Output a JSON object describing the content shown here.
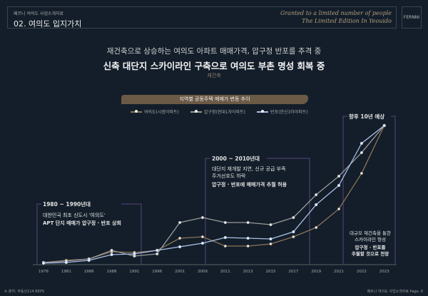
{
  "header": {
    "subtitle": "페르니 여의도 사업소개자료",
    "title": "02. 여의도 입지가치",
    "script_line1": "Granted to a limited number of people",
    "script_line2": "The Limited Edition In Yeouido",
    "logo": "FERNNI"
  },
  "lead": {
    "line1": "재건축으로 상승하는 여의도 아파트 매매가격, 압구정 반포를 추격 중",
    "line2": "신축 대단지 스카이라인 구축으로 여의도 부촌 명성 회복 중",
    "tag": "재건축"
  },
  "chart_data": {
    "type": "line",
    "title": "지역별 공동주택 매매가 변동 추이",
    "xlabel": "",
    "ylabel": "",
    "categories": [
      "1976",
      "1981",
      "1986",
      "1988",
      "1991",
      "1996",
      "2001",
      "2009",
      "2011",
      "2013",
      "2015",
      "2017",
      "2019",
      "2021",
      "2022",
      "2023"
    ],
    "ylim": [
      0,
      200
    ],
    "grid": false,
    "legend": "top",
    "series": [
      {
        "name": "여의도(시범아파트)",
        "color": "#8a7458",
        "values": [
          4,
          7,
          9,
          19,
          18,
          21,
          38,
          40,
          27,
          27,
          30,
          40,
          53,
          79,
          129,
          196
        ]
      },
      {
        "name": "압구정(현대1차아파트)",
        "color": "#9a9a9a",
        "values": [
          4,
          6,
          9,
          21,
          13,
          16,
          60,
          67,
          60,
          60,
          57,
          67,
          99,
          125,
          158,
          196
        ]
      },
      {
        "name": "반포(한신3차아파트)",
        "color": "#a9bfe6",
        "values": [
          3,
          4,
          7,
          15,
          16,
          21,
          26,
          31,
          39,
          38,
          37,
          47,
          85,
          112,
          171,
          196
        ]
      }
    ],
    "annotations": [
      {
        "title": "1980 ~ 1990년대",
        "lines": [
          "대한민국 최초 신도시 '여의도'",
          "APT 단지 매매가 압구정 · 반포 상회"
        ]
      },
      {
        "title": "2000 ~ 2010년대",
        "lines": [
          "대단지 재개발 지연, 신규 공급 부족",
          "주거선호도 하락",
          "압구정 · 반포에 매매가격 추월 허용"
        ]
      },
      {
        "title": "향후 10년 예상",
        "lines": [
          "대규모 재건축을 통한",
          "스카이라인 형성",
          "압구정 · 반포를",
          "추월할 것으로 전망"
        ]
      }
    ]
  },
  "footer": {
    "source": "※ 출처: 부동산114 REPS",
    "page": "페르니 여의도 사업소개자료 Page. 6"
  }
}
